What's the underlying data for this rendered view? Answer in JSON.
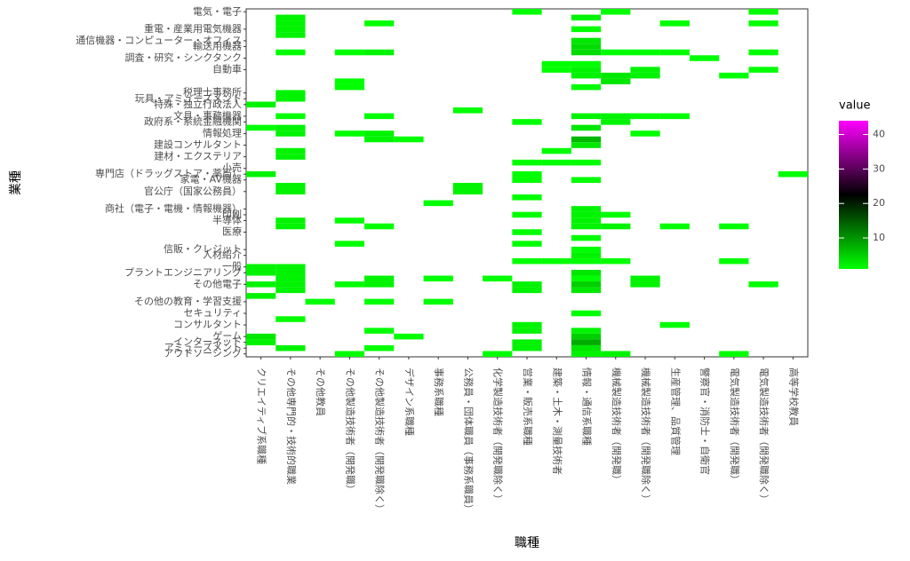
{
  "chart_data": {
    "type": "heatmap",
    "x_label": "職種",
    "y_label": "業種",
    "x_categories": [
      "クリエイティブ系職種",
      "その他専門的・技術的職業",
      "その他教員",
      "その他製造技術者（開発職）",
      "その他製造技術者（開発職除く）",
      "デザイン系職種",
      "事務系職種",
      "公務員・団体職員（事務系職員）",
      "化学製造技術者（開発職除く）",
      "営業・販売系職種",
      "建築・土木・測量技術者",
      "情報・通信系職種",
      "機械製造技術者（開発職）",
      "機械製造技術者（開発職除く）",
      "生産管理、品質管理",
      "警察官・消防士・自衛官",
      "電気製造技術者（開発職）",
      "電気製造技術者（開発職除く）",
      "高等学校教員"
    ],
    "y_categories": [
      "電気・電子",
      null,
      null,
      "重電・産業用電気機器",
      null,
      "通信機器・コンピューター・オフィス",
      "輸送用機器",
      null,
      "調査・研究・シンクタンク",
      null,
      "自動車",
      null,
      null,
      null,
      "税理士事務所",
      "玩具・アミューズメント",
      "特殊・独立行政法人",
      null,
      "文具・事務機器",
      "政府系・系統金融機関",
      null,
      "情報処理",
      null,
      "建設コンサルタント",
      null,
      "建材・エクステリア",
      null,
      "小売",
      "専門店（ドラッグストア・薬局）",
      "家電・AV機器",
      null,
      "官公庁（国家公務員）",
      null,
      null,
      "商社（電子・電機・情報機器）",
      "印刷",
      "半導体",
      null,
      "医療",
      null,
      null,
      "信販・クレジット",
      "人材紹介",
      null,
      "一般",
      "プラントエンジニアリング",
      null,
      "その他電子",
      null,
      null,
      "その他の教育・学習支援",
      null,
      "セキュリティ",
      null,
      "コンサルタント",
      null,
      "ゲーム",
      "インターネット",
      "アミューズメント",
      "アウトソーシング"
    ],
    "cells": [
      [
        0,
        16,
        2
      ],
      [
        0,
        20,
        1
      ],
      [
        0,
        28,
        2
      ],
      [
        0,
        44,
        2
      ],
      [
        0,
        45,
        2
      ],
      [
        0,
        47,
        2
      ],
      [
        0,
        49,
        2
      ],
      [
        0,
        56,
        3
      ],
      [
        0,
        57,
        2
      ],
      [
        1,
        1,
        2
      ],
      [
        1,
        2,
        2
      ],
      [
        1,
        3,
        2
      ],
      [
        1,
        4,
        2
      ],
      [
        1,
        7,
        1
      ],
      [
        1,
        14,
        2
      ],
      [
        1,
        15,
        2
      ],
      [
        1,
        18,
        1
      ],
      [
        1,
        20,
        2
      ],
      [
        1,
        21,
        2
      ],
      [
        1,
        24,
        2
      ],
      [
        1,
        25,
        2
      ],
      [
        1,
        30,
        2
      ],
      [
        1,
        31,
        2
      ],
      [
        1,
        36,
        2
      ],
      [
        1,
        37,
        2
      ],
      [
        1,
        44,
        2
      ],
      [
        1,
        45,
        2
      ],
      [
        1,
        46,
        2
      ],
      [
        1,
        47,
        2
      ],
      [
        1,
        48,
        2
      ],
      [
        1,
        53,
        1
      ],
      [
        1,
        58,
        2
      ],
      [
        2,
        50,
        1
      ],
      [
        3,
        7,
        1
      ],
      [
        3,
        12,
        1
      ],
      [
        3,
        13,
        1
      ],
      [
        3,
        21,
        1
      ],
      [
        3,
        36,
        1
      ],
      [
        3,
        40,
        1
      ],
      [
        3,
        47,
        1
      ],
      [
        3,
        59,
        1
      ],
      [
        4,
        2,
        1
      ],
      [
        4,
        7,
        2
      ],
      [
        4,
        18,
        1
      ],
      [
        4,
        21,
        2
      ],
      [
        4,
        22,
        2
      ],
      [
        4,
        37,
        1
      ],
      [
        4,
        46,
        2
      ],
      [
        4,
        47,
        2
      ],
      [
        4,
        50,
        1
      ],
      [
        4,
        55,
        1
      ],
      [
        4,
        58,
        1
      ],
      [
        5,
        22,
        1
      ],
      [
        5,
        56,
        1
      ],
      [
        6,
        33,
        1
      ],
      [
        6,
        46,
        1
      ],
      [
        6,
        50,
        1
      ],
      [
        7,
        17,
        1
      ],
      [
        7,
        30,
        2
      ],
      [
        7,
        31,
        2
      ],
      [
        8,
        46,
        1
      ],
      [
        8,
        59,
        1
      ],
      [
        9,
        0,
        1
      ],
      [
        9,
        19,
        1
      ],
      [
        9,
        26,
        1
      ],
      [
        9,
        28,
        1
      ],
      [
        9,
        29,
        1
      ],
      [
        9,
        32,
        1
      ],
      [
        9,
        35,
        1
      ],
      [
        9,
        38,
        1
      ],
      [
        9,
        40,
        1
      ],
      [
        9,
        43,
        1
      ],
      [
        9,
        47,
        2
      ],
      [
        9,
        48,
        2
      ],
      [
        9,
        54,
        2
      ],
      [
        9,
        55,
        2
      ],
      [
        9,
        57,
        2
      ],
      [
        9,
        58,
        2
      ],
      [
        10,
        9,
        1
      ],
      [
        10,
        10,
        1
      ],
      [
        10,
        24,
        1
      ],
      [
        10,
        26,
        1
      ],
      [
        10,
        43,
        1
      ],
      [
        11,
        1,
        2
      ],
      [
        11,
        3,
        1
      ],
      [
        11,
        5,
        3
      ],
      [
        11,
        6,
        4
      ],
      [
        11,
        7,
        4
      ],
      [
        11,
        9,
        1
      ],
      [
        11,
        10,
        2
      ],
      [
        11,
        11,
        2
      ],
      [
        11,
        13,
        1
      ],
      [
        11,
        18,
        2
      ],
      [
        11,
        20,
        3
      ],
      [
        11,
        22,
        7
      ],
      [
        11,
        23,
        3
      ],
      [
        11,
        26,
        1
      ],
      [
        11,
        29,
        1
      ],
      [
        11,
        34,
        2
      ],
      [
        11,
        35,
        2
      ],
      [
        11,
        36,
        2
      ],
      [
        11,
        37,
        2
      ],
      [
        11,
        39,
        1
      ],
      [
        11,
        41,
        1
      ],
      [
        11,
        42,
        2
      ],
      [
        11,
        43,
        1
      ],
      [
        11,
        45,
        3
      ],
      [
        11,
        46,
        1
      ],
      [
        11,
        47,
        5
      ],
      [
        11,
        48,
        3
      ],
      [
        11,
        52,
        1
      ],
      [
        11,
        55,
        2
      ],
      [
        11,
        56,
        5
      ],
      [
        11,
        57,
        8
      ],
      [
        11,
        58,
        3
      ],
      [
        11,
        59,
        2
      ],
      [
        12,
        0,
        1
      ],
      [
        12,
        7,
        1
      ],
      [
        12,
        11,
        3
      ],
      [
        12,
        12,
        3
      ],
      [
        12,
        18,
        2
      ],
      [
        12,
        19,
        2
      ],
      [
        12,
        35,
        1
      ],
      [
        12,
        37,
        2
      ],
      [
        12,
        43,
        1
      ],
      [
        12,
        59,
        2
      ],
      [
        13,
        7,
        1
      ],
      [
        13,
        10,
        2
      ],
      [
        13,
        11,
        2
      ],
      [
        13,
        18,
        1
      ],
      [
        13,
        21,
        1
      ],
      [
        13,
        46,
        2
      ],
      [
        13,
        47,
        2
      ],
      [
        14,
        2,
        1
      ],
      [
        14,
        7,
        1
      ],
      [
        14,
        18,
        1
      ],
      [
        14,
        37,
        1
      ],
      [
        14,
        54,
        1
      ],
      [
        15,
        8,
        1
      ],
      [
        16,
        11,
        1
      ],
      [
        16,
        37,
        1
      ],
      [
        16,
        43,
        1
      ],
      [
        16,
        59,
        1
      ],
      [
        17,
        0,
        1
      ],
      [
        17,
        2,
        1
      ],
      [
        17,
        7,
        1
      ],
      [
        17,
        10,
        1
      ],
      [
        17,
        47,
        1
      ],
      [
        18,
        28,
        1
      ]
    ],
    "legend_title": "value",
    "color_lim": [
      1,
      44
    ],
    "color_ticks": [
      10,
      20,
      30,
      40
    ],
    "colors": [
      "#00ff00",
      "#000000",
      "#ff00ff"
    ]
  }
}
